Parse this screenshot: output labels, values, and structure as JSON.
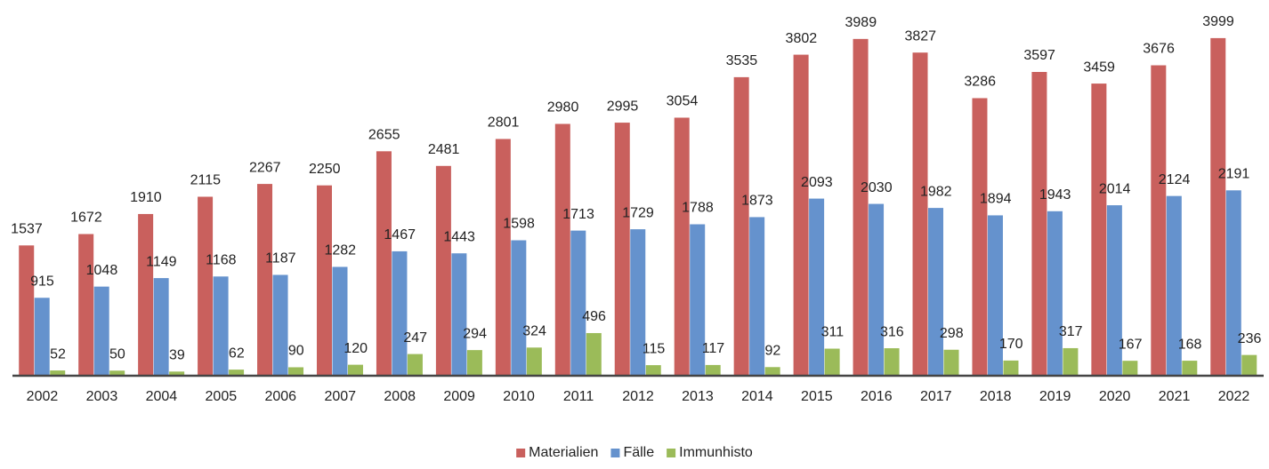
{
  "chart_data": {
    "type": "bar",
    "categories": [
      "2002",
      "2003",
      "2004",
      "2005",
      "2006",
      "2007",
      "2008",
      "2009",
      "2010",
      "2011",
      "2012",
      "2013",
      "2014",
      "2015",
      "2016",
      "2017",
      "2018",
      "2019",
      "2020",
      "2021",
      "2022"
    ],
    "series": [
      {
        "name": "Materialien",
        "color": "#c9605d",
        "values": [
          1537,
          1672,
          1910,
          2115,
          2267,
          2250,
          2655,
          2481,
          2801,
          2980,
          2995,
          3054,
          3535,
          3802,
          3989,
          3827,
          3286,
          3597,
          3459,
          3676,
          3999
        ]
      },
      {
        "name": "Fälle",
        "color": "#6592cd",
        "values": [
          915,
          1048,
          1149,
          1168,
          1187,
          1282,
          1467,
          1443,
          1598,
          1713,
          1729,
          1788,
          1873,
          2093,
          2030,
          1982,
          1894,
          1943,
          2014,
          2124,
          2191
        ]
      },
      {
        "name": "Immunhisto",
        "color": "#9bbb59",
        "values": [
          52,
          50,
          39,
          62,
          90,
          120,
          247,
          294,
          324,
          496,
          115,
          117,
          92,
          311,
          316,
          298,
          170,
          317,
          167,
          168,
          236
        ]
      }
    ],
    "legend": "bottom"
  }
}
